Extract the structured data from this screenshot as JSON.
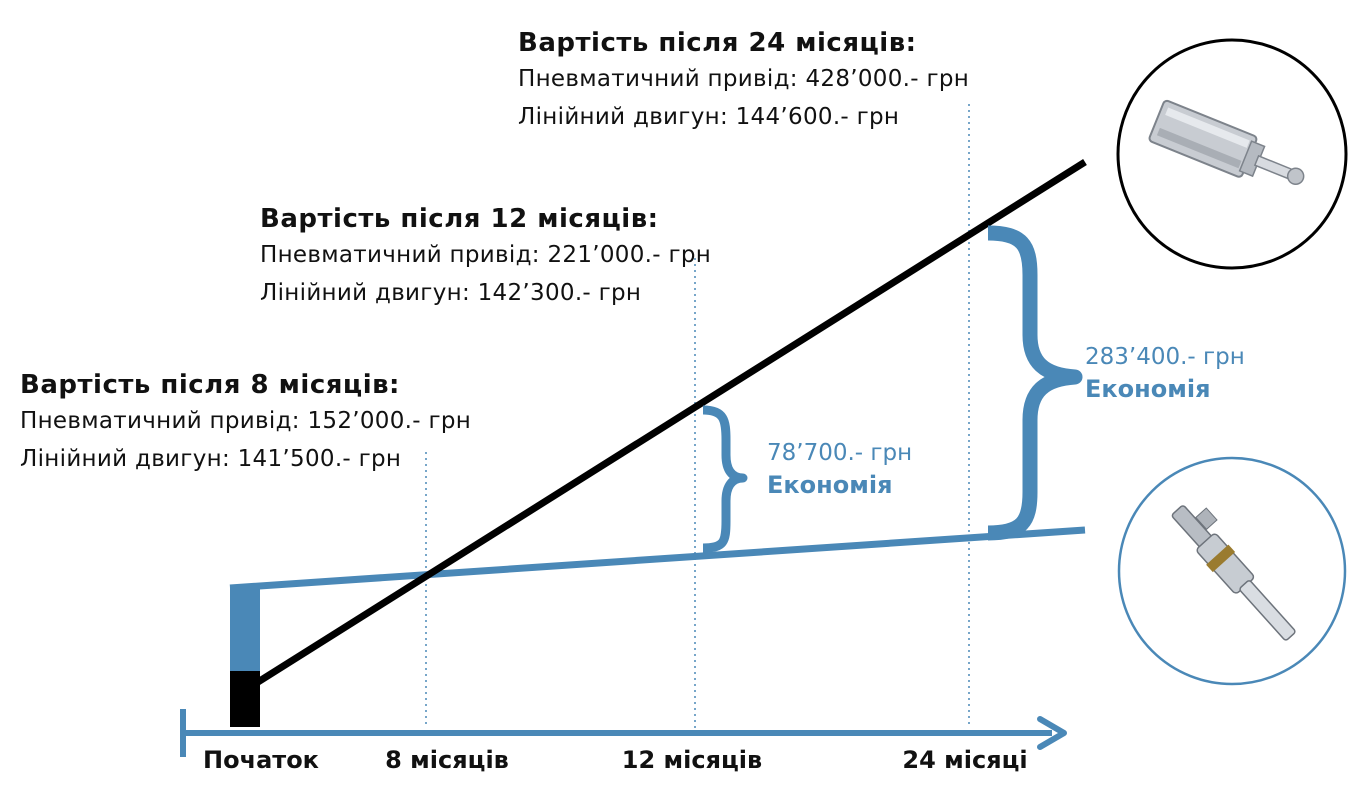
{
  "blocks": {
    "after_24": {
      "title": "Вартість після 24 місяців:",
      "pneumatic": "Пневматичний привід: 428’000.- грн",
      "linear": "Лінійний двигун: 144’600.- грн"
    },
    "after_12": {
      "title": "Вартість після 12 місяців:",
      "pneumatic": "Пневматичний привід: 221’000.- грн",
      "linear": "Лінійний двигун: 142’300.- грн"
    },
    "after_8": {
      "title": "Вартість після 8 місяців:",
      "pneumatic": "Пневматичний привід: 152’000.- грн",
      "linear": "Лінійний двигун: 141’500.- грн"
    }
  },
  "savings": {
    "at_12": {
      "amount": "78’700.- грн",
      "label": "Економія"
    },
    "at_24": {
      "amount": "283’400.- грн",
      "label": "Економія"
    }
  },
  "axis": {
    "labels": [
      "Початок",
      "8 місяців",
      "12 місяців",
      "24 місяці"
    ]
  },
  "colors": {
    "pneumatic_line": "#000000",
    "linear_line": "#4a88b7",
    "axis": "#4a88b7",
    "text": "#111111"
  }
}
